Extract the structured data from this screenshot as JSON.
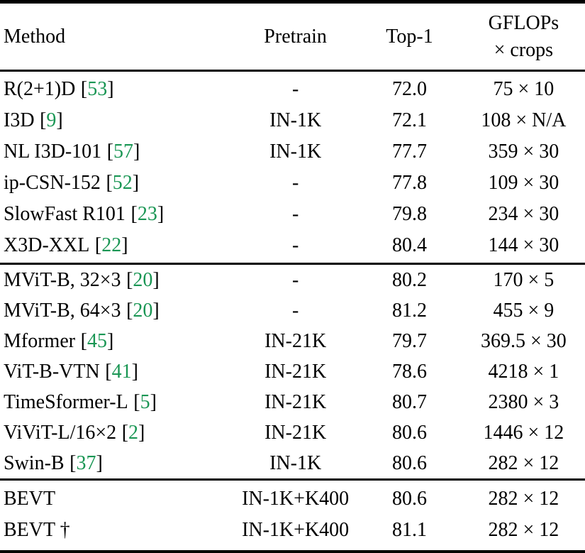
{
  "colors": {
    "background": "#ffffff",
    "text": "#000000",
    "rule": "#000000",
    "citation_green": "#1A9654"
  },
  "header": {
    "method": "Method",
    "pretrain": "Pretrain",
    "top1": "Top-1",
    "gflops_line1": "GFLOPs",
    "gflops_line2": "× crops"
  },
  "cite_brackets": {
    "open": "[",
    "close": "]"
  },
  "groups": [
    {
      "rows": [
        {
          "method": "R(2+1)D",
          "cite": "53",
          "pretrain": "-",
          "top1": "72.0",
          "gflops": "75 × 10"
        },
        {
          "method": "I3D",
          "cite": "9",
          "pretrain": "IN-1K",
          "top1": "72.1",
          "gflops": "108 × N/A"
        },
        {
          "method": "NL I3D-101",
          "cite": "57",
          "pretrain": "IN-1K",
          "top1": "77.7",
          "gflops": "359 × 30"
        },
        {
          "method": "ip-CSN-152",
          "cite": "52",
          "pretrain": "-",
          "top1": "77.8",
          "gflops": "109 × 30"
        },
        {
          "method": "SlowFast R101",
          "cite": "23",
          "pretrain": "-",
          "top1": "79.8",
          "gflops": "234 × 30"
        },
        {
          "method": "X3D-XXL",
          "cite": "22",
          "pretrain": "-",
          "top1": "80.4",
          "gflops": "144 × 30"
        }
      ]
    },
    {
      "rows": [
        {
          "method": "MViT-B, 32×3",
          "cite": "20",
          "pretrain": "-",
          "top1": "80.2",
          "gflops": "170 × 5"
        },
        {
          "method": "MViT-B, 64×3",
          "cite": "20",
          "pretrain": "-",
          "top1": "81.2",
          "gflops": "455 × 9"
        },
        {
          "method": "Mformer",
          "cite": "45",
          "pretrain": "IN-21K",
          "top1": "79.7",
          "gflops": "369.5 × 30"
        },
        {
          "method": "ViT-B-VTN",
          "cite": "41",
          "pretrain": "IN-21K",
          "top1": "78.6",
          "gflops": "4218 × 1"
        },
        {
          "method": "TimeSformer-L",
          "cite": "5",
          "pretrain": "IN-21K",
          "top1": "80.7",
          "gflops": "2380 × 3"
        },
        {
          "method": "ViViT-L/16×2",
          "cite": "2",
          "pretrain": "IN-21K",
          "top1": "80.6",
          "gflops": "1446 × 12"
        },
        {
          "method": "Swin-B",
          "cite": "37",
          "pretrain": "IN-1K",
          "top1": "80.6",
          "gflops": "282 × 12"
        }
      ]
    },
    {
      "rows": [
        {
          "method": "BEVT",
          "cite": null,
          "pretrain": "IN-1K+K400",
          "top1": "80.6",
          "gflops": "282 × 12"
        },
        {
          "method": "BEVT †",
          "cite": null,
          "pretrain": "IN-1K+K400",
          "top1": "81.1",
          "gflops": "282 × 12"
        }
      ]
    }
  ]
}
